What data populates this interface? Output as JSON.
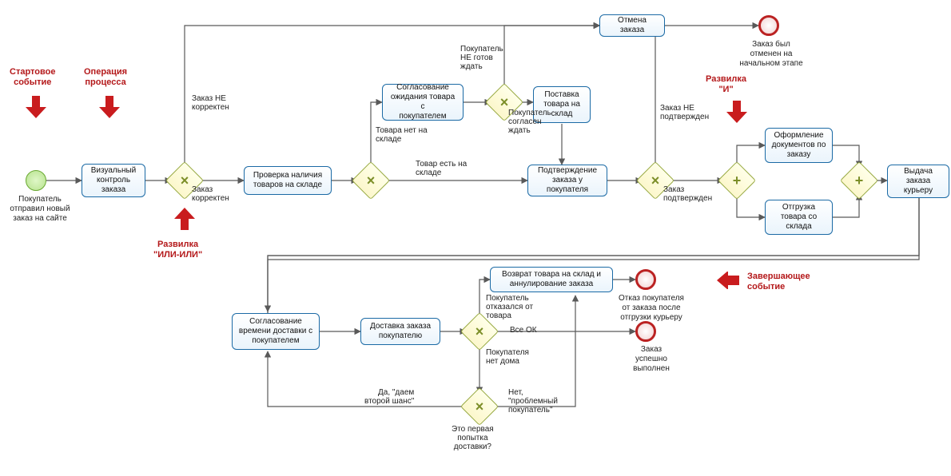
{
  "callouts": {
    "start": "Стартовое\nсобытие",
    "op": "Операция\nпроцесса",
    "xor": "Развилка\n\"ИЛИ-ИЛИ\"",
    "and": "Развилка\n\"И\"",
    "end": "Завершающее\nсобытие"
  },
  "events": {
    "start_lbl": "Покупатель\nотправил новый\nзаказ на сайте",
    "end_cancel_lbl": "Заказ был\nотменен на\nначальном этапе",
    "end_refuse_lbl": "Отказ покупателя\nот заказа после\nотгрузки курьеру",
    "end_ok_lbl": "Заказ\nуспешно\nвыполнен"
  },
  "tasks": {
    "visual": "Визуальный\nконтроль\nзаказа",
    "check_stock": "Проверка наличия\nтоваров на складе",
    "agree_wait": "Согласование\nожидания товара с\nпокупателем",
    "supply": "Поставка\nтовара на\nсклад",
    "confirm": "Подтверждение\nзаказа у покупателя",
    "cancel": "Отмена заказа",
    "docs": "Оформление\nдокументов по\nзаказу",
    "ship": "Отгрузка\nтовара со\nсклада",
    "issue": "Выдача заказа\nкурьеру",
    "agree_time": "Согласование\nвремени доставки с\nпокупателем",
    "deliver": "Доставка заказа\nпокупателю",
    "return": "Возврат товара на склад и\nаннулирование заказа"
  },
  "edges": {
    "incorrect": "Заказ НЕ\nкорректен",
    "correct": "Заказ\nкорректен",
    "nostock": "Товара нет на\nскладе",
    "instock": "Товар есть на\nскладе",
    "notready": "Покупатель\nНЕ готов\nждать",
    "ready": "Покупатель\nсогласен\nждать",
    "not_conf": "Заказ НЕ\nподтвержден",
    "conf": "Заказ\nподтвержден",
    "refused": "Покупатель\nотказался от\nтовара",
    "allok": "Все ОК",
    "nohome": "Покупателя\nнет дома",
    "firstq": "Это первая\nпопытка\nдоставки?",
    "yes2nd": "Да, \"даем\nвторой шанс\"",
    "problem": "Нет,\n\"проблемный\nпокупатель\""
  },
  "colors": {
    "edge": "#595959",
    "red": "#b4181a",
    "task_border": "#1b6aa5",
    "gw_border": "#97a93e"
  }
}
